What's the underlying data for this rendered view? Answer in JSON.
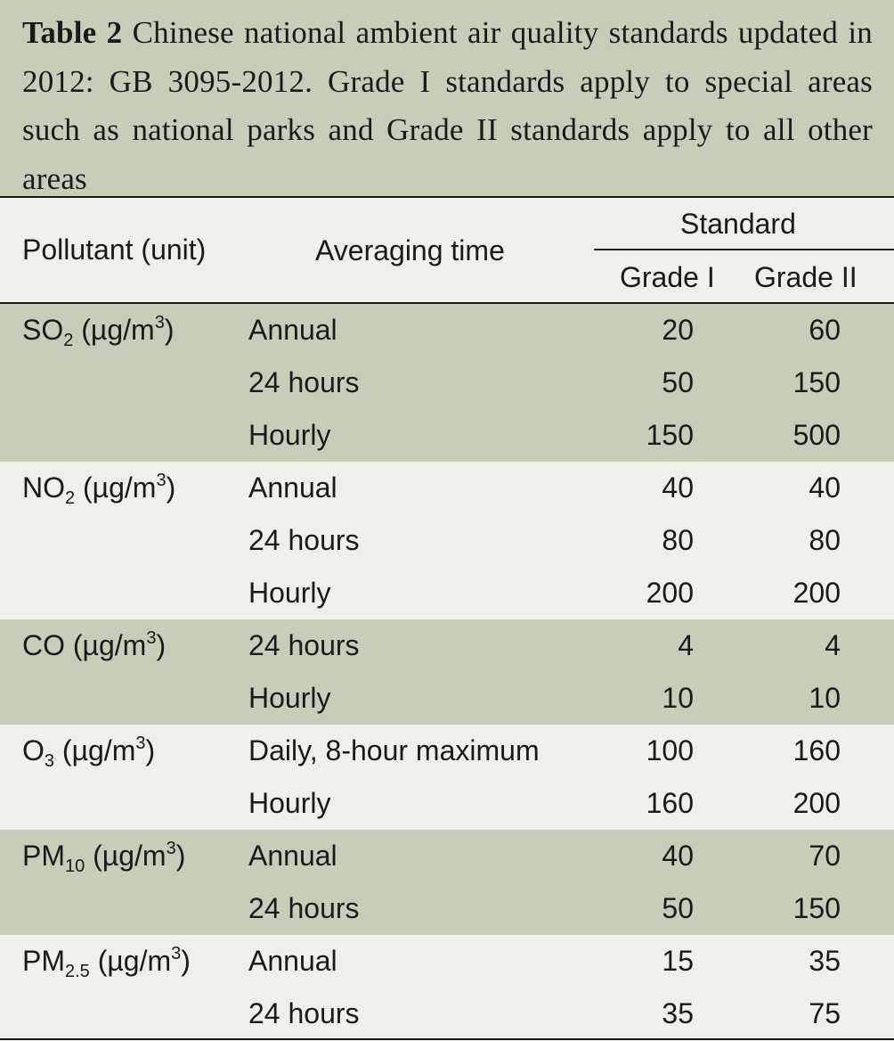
{
  "caption": {
    "label": "Table 2",
    "text": "Chinese national ambient air quality standards updated in 2012: GB 3095-2012. Grade I standards apply to special areas such as national parks and Grade II standards apply to all other areas"
  },
  "header": {
    "pollutant": "Pollutant (unit)",
    "averaging_time": "Averaging time",
    "standard": "Standard",
    "grade1": "Grade I",
    "grade2": "Grade II"
  },
  "groups": [
    {
      "pollutant": {
        "base": "SO",
        "sub": "2",
        "unit": "(µg/m",
        "exp": "3",
        "close": ")"
      },
      "rows": [
        {
          "time": "Annual",
          "g1": "20",
          "g2": "60"
        },
        {
          "time": "24 hours",
          "g1": "50",
          "g2": "150"
        },
        {
          "time": "Hourly",
          "g1": "150",
          "g2": "500"
        }
      ]
    },
    {
      "pollutant": {
        "base": "NO",
        "sub": "2",
        "unit": "(µg/m",
        "exp": "3",
        "close": ")"
      },
      "rows": [
        {
          "time": "Annual",
          "g1": "40",
          "g2": "40"
        },
        {
          "time": "24 hours",
          "g1": "80",
          "g2": "80"
        },
        {
          "time": "Hourly",
          "g1": "200",
          "g2": "200"
        }
      ]
    },
    {
      "pollutant": {
        "base": "CO",
        "sub": "",
        "unit": "(µg/m",
        "exp": "3",
        "close": ")"
      },
      "rows": [
        {
          "time": "24 hours",
          "g1": "4",
          "g2": "4"
        },
        {
          "time": "Hourly",
          "g1": "10",
          "g2": "10"
        }
      ]
    },
    {
      "pollutant": {
        "base": "O",
        "sub": "3",
        "unit": "(µg/m",
        "exp": "3",
        "close": ")"
      },
      "rows": [
        {
          "time": "Daily, 8-hour maximum",
          "g1": "100",
          "g2": "160"
        },
        {
          "time": "Hourly",
          "g1": "160",
          "g2": "200"
        }
      ]
    },
    {
      "pollutant": {
        "base": "PM",
        "sub": "10",
        "unit": "(µg/m",
        "exp": "3",
        "close": ")"
      },
      "rows": [
        {
          "time": "Annual",
          "g1": "40",
          "g2": "70"
        },
        {
          "time": "24 hours",
          "g1": "50",
          "g2": "150"
        }
      ]
    },
    {
      "pollutant": {
        "base": "PM",
        "sub": "2.5",
        "unit": "(µg/m",
        "exp": "3",
        "close": ")"
      },
      "rows": [
        {
          "time": "Annual",
          "g1": "15",
          "g2": "35"
        },
        {
          "time": "24 hours",
          "g1": "35",
          "g2": "75"
        }
      ]
    }
  ]
}
